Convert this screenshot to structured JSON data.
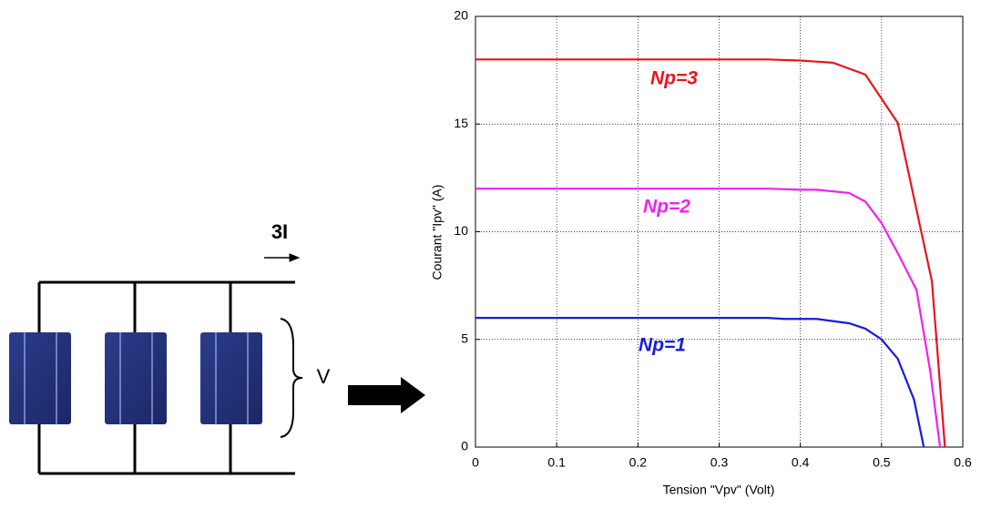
{
  "diagram": {
    "current_label": "3I",
    "voltage_label": "V"
  },
  "chart_data": {
    "type": "line",
    "xlabel": "Tension \"Vpv\" (Volt)",
    "ylabel": "Courant \"Ipv\" (A)",
    "xlim": [
      0,
      0.6
    ],
    "ylim": [
      0,
      20
    ],
    "xticks": [
      0,
      0.1,
      0.2,
      0.3,
      0.4,
      0.5,
      0.6
    ],
    "yticks": [
      0,
      5,
      10,
      15,
      20
    ],
    "grid": true,
    "series": [
      {
        "name": "Np=3",
        "color": "#e8141c",
        "x": [
          0,
          0.36,
          0.4,
          0.44,
          0.48,
          0.52,
          0.562,
          0.578
        ],
        "values": [
          18,
          18,
          17.95,
          17.85,
          17.3,
          15.05,
          7.7,
          0
        ]
      },
      {
        "name": "Np=2",
        "color": "#ee22ee",
        "x": [
          0,
          0.36,
          0.4,
          0.42,
          0.46,
          0.48,
          0.5,
          0.52,
          0.543,
          0.56,
          0.572
        ],
        "values": [
          12,
          12,
          11.95,
          11.95,
          11.8,
          11.4,
          10.4,
          9,
          7.3,
          3.5,
          0
        ]
      },
      {
        "name": "Np=1",
        "color": "#1a1ae0",
        "x": [
          0,
          0.36,
          0.38,
          0.42,
          0.46,
          0.48,
          0.5,
          0.52,
          0.54,
          0.552
        ],
        "values": [
          6,
          6,
          5.95,
          5.95,
          5.75,
          5.5,
          5.0,
          4.1,
          2.2,
          0
        ]
      }
    ]
  }
}
